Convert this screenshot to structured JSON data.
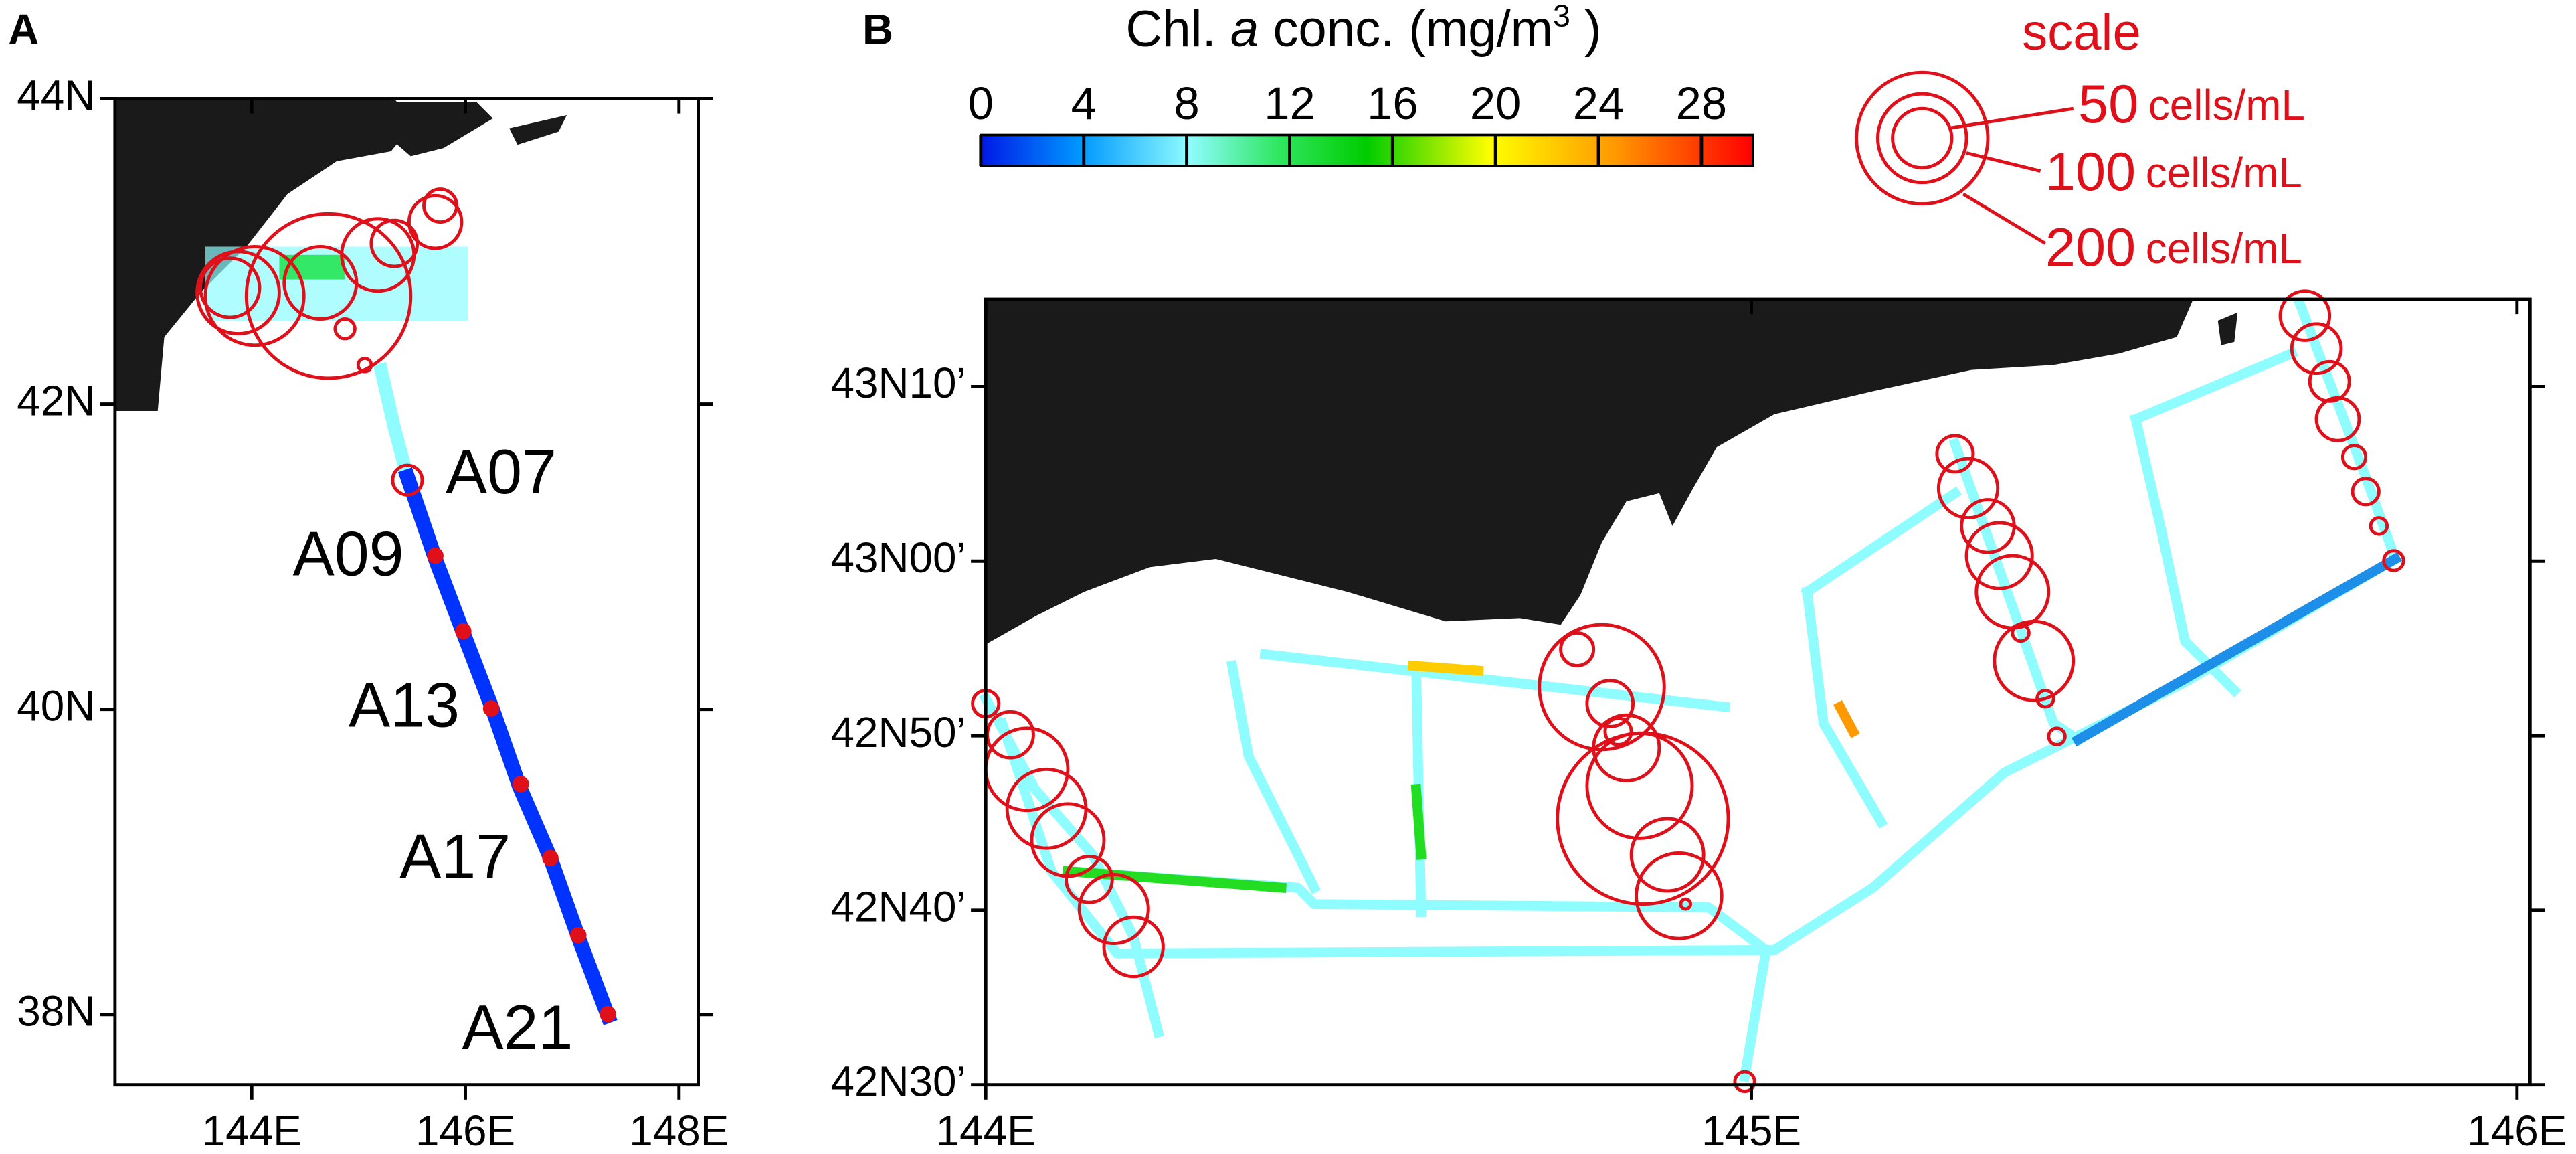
{
  "panels": [
    {
      "label": "A",
      "xlim": [
        142.72,
        148.18
      ],
      "ylim": [
        37.54,
        44
      ],
      "xticks": [
        {
          "value": 144,
          "label": "144E"
        },
        {
          "value": 146,
          "label": "146E"
        },
        {
          "value": 148,
          "label": "148E"
        }
      ],
      "yticks": [
        {
          "value": 38,
          "label": "38N"
        },
        {
          "value": 40,
          "label": "40N"
        },
        {
          "value": 42,
          "label": "42N"
        },
        {
          "value": 44,
          "label": "44N"
        }
      ],
      "stations": [
        "A07",
        "A09",
        "A13",
        "A17",
        "A21"
      ]
    },
    {
      "label": "B",
      "xlim": [
        144,
        146.017
      ],
      "ylim": [
        42.5,
        43.25
      ],
      "xticks": [
        {
          "value": 144,
          "label": "144E"
        },
        {
          "value": 145,
          "label": "145E"
        },
        {
          "value": 146,
          "label": "146E"
        }
      ],
      "yticks": [
        {
          "value": 42.5,
          "label": "42N30’"
        },
        {
          "value": 42.6667,
          "label": "42N40’"
        },
        {
          "value": 42.8333,
          "label": "42N50’"
        },
        {
          "value": 43,
          "label": "43N00’"
        },
        {
          "value": 43.1667,
          "label": "43N10’"
        }
      ]
    }
  ],
  "colorbar": {
    "title": {
      "before": "Chl. ",
      "italic": "a",
      "after": " conc. (mg/m",
      "sup": "3",
      "close": " )"
    },
    "range": [
      0,
      30
    ],
    "ticks": [
      0,
      4,
      8,
      12,
      16,
      20,
      24,
      28
    ]
  },
  "scale": {
    "title": "scale",
    "entries": [
      {
        "number": "50",
        "unit": "cells/mL"
      },
      {
        "number": "100",
        "unit": "cells/mL"
      },
      {
        "number": "200",
        "unit": "cells/mL"
      }
    ]
  }
}
